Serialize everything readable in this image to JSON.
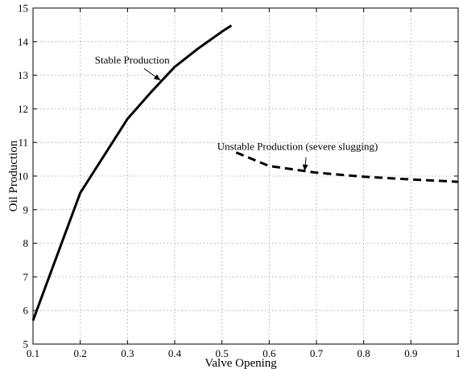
{
  "chart_data": {
    "type": "line",
    "title": "",
    "xlabel": "Valve Opening",
    "ylabel": "Oil Production",
    "xlim": [
      0.1,
      1
    ],
    "ylim": [
      5,
      15
    ],
    "x_ticks": [
      "0.1",
      "0.2",
      "0.3",
      "0.4",
      "0.5",
      "0.6",
      "0.7",
      "0.8",
      "0.9",
      "1"
    ],
    "y_ticks": [
      "5",
      "6",
      "7",
      "8",
      "9",
      "10",
      "11",
      "12",
      "13",
      "14",
      "15"
    ],
    "grid": true,
    "series": [
      {
        "line_style": "solid",
        "x": [
          0.1,
          0.15,
          0.2,
          0.25,
          0.3,
          0.35,
          0.4,
          0.45,
          0.5,
          0.52
        ],
        "y": [
          5.7,
          7.6,
          9.5,
          10.6,
          11.7,
          12.5,
          13.25,
          13.8,
          14.3,
          14.48
        ]
      },
      {
        "line_style": "dashed",
        "x": [
          0.53,
          0.6,
          0.7,
          0.8,
          0.9,
          1.0
        ],
        "y": [
          10.7,
          10.3,
          10.1,
          9.98,
          9.9,
          9.83
        ]
      }
    ],
    "annotations": [
      {
        "text": "Stable Production",
        "x": 0.31,
        "y": 13.35,
        "arrow_to": [
          0.37,
          12.85
        ]
      },
      {
        "text": "Unstable Production (severe slugging)",
        "x": 0.66,
        "y": 10.78,
        "arrow_to": [
          0.675,
          10.15
        ]
      }
    ],
    "colors": {
      "line": "#000000",
      "grid": "#9a9a9a",
      "frame": "#000000"
    }
  }
}
